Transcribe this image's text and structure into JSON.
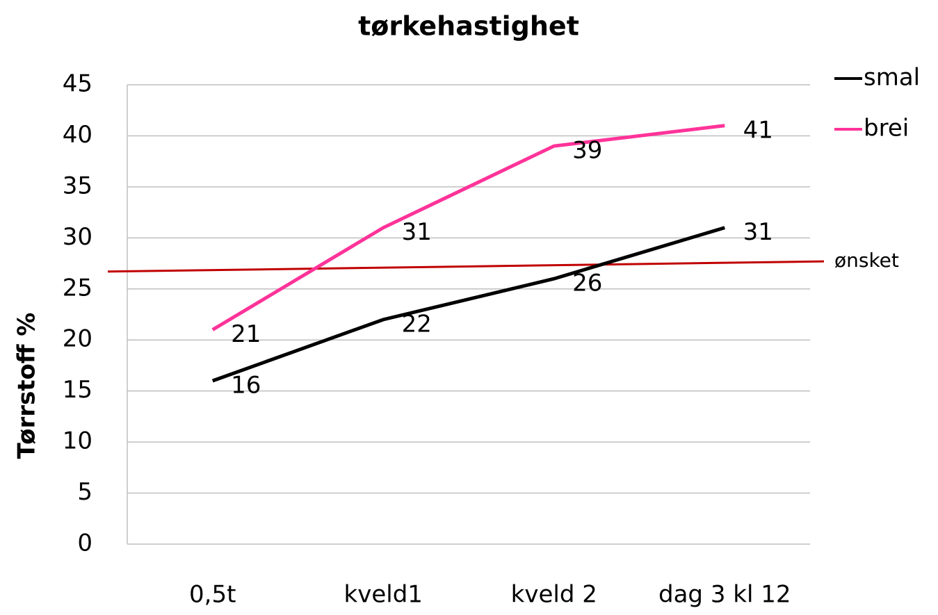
{
  "chart_data": {
    "type": "line",
    "title": "tørkehastighet",
    "y_label": "Tørrstoff %",
    "categories": [
      "0,5t",
      "kveld1",
      "kveld 2",
      "dag 3 kl 12"
    ],
    "series": [
      {
        "name": "smal",
        "color": "#000000",
        "values": [
          16,
          22,
          26,
          31
        ]
      },
      {
        "name": "brei",
        "color": "#ff3399",
        "values": [
          21,
          31,
          39,
          41
        ]
      }
    ],
    "annotation": {
      "label": "ønsket",
      "color": "#c00000",
      "y": [
        26.7,
        27.7
      ]
    },
    "ylim": [
      0,
      45
    ],
    "yticks": [
      0,
      5,
      10,
      15,
      20,
      25,
      30,
      35,
      40,
      45
    ],
    "grid": true,
    "legend": "top-right"
  }
}
